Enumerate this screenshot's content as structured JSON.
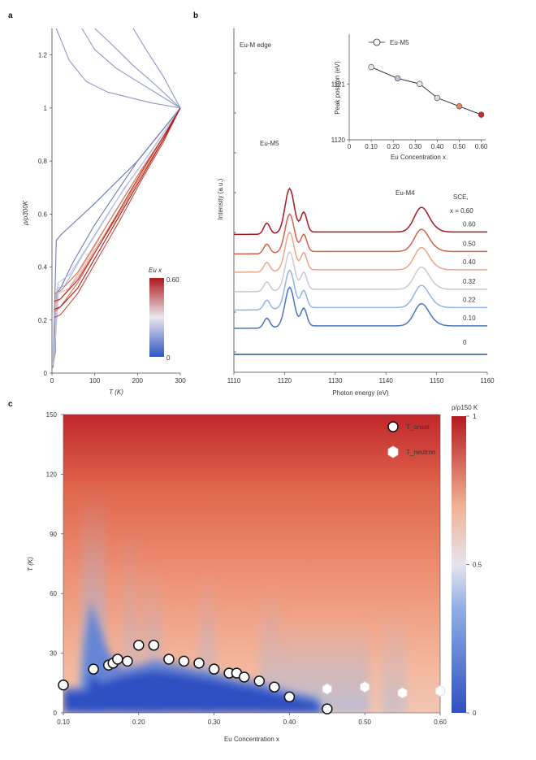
{
  "panels": {
    "a": "a",
    "b": "b",
    "c": "c"
  },
  "colors": {
    "low": "#2f56c2",
    "mid": "#eae7ee",
    "high": "#b0181f",
    "axis": "#444444",
    "gray": "#9aa4c4"
  },
  "chart_data": [
    {
      "id": "a",
      "type": "line",
      "xlabel": "T (K)",
      "ylabel": "ρ/ρ300K",
      "xlim": [
        0,
        300
      ],
      "ylim": [
        0,
        1.3
      ],
      "xticks": [
        "0",
        "100",
        "200",
        "300"
      ],
      "yticks": [
        "0",
        "0.2",
        "0.4",
        "0.6",
        "0.8",
        "1",
        "1.2"
      ],
      "colorbar": {
        "title": "Eu x",
        "max_label": "0.60",
        "min_label": "0"
      },
      "series": [
        {
          "x": 0.0,
          "color": "#8e98c8",
          "points": [
            [
              10,
              1.3
            ],
            [
              40,
              1.18
            ],
            [
              80,
              1.1
            ],
            [
              130,
              1.06
            ],
            [
              180,
              1.04
            ],
            [
              230,
              1.02
            ],
            [
              300,
              1.0
            ]
          ]
        },
        {
          "x": 0.05,
          "color": "#8e98c8",
          "points": [
            [
              70,
              1.3
            ],
            [
              100,
              1.22
            ],
            [
              150,
              1.15
            ],
            [
              200,
              1.1
            ],
            [
              250,
              1.05
            ],
            [
              300,
              1.0
            ]
          ]
        },
        {
          "x": 0.08,
          "color": "#8e98c8",
          "points": [
            [
              100,
              1.3
            ],
            [
              140,
              1.24
            ],
            [
              190,
              1.16
            ],
            [
              240,
              1.09
            ],
            [
              300,
              1.0
            ]
          ]
        },
        {
          "x": 0.12,
          "color": "#8e98c8",
          "points": [
            [
              190,
              1.3
            ],
            [
              220,
              1.22
            ],
            [
              260,
              1.12
            ],
            [
              300,
              1.0
            ]
          ]
        },
        {
          "x": 0.1,
          "color": "#6f78b8",
          "points": [
            [
              2,
              0.02
            ],
            [
              8,
              0.08
            ],
            [
              10,
              0.3
            ],
            [
              20,
              0.32
            ],
            [
              50,
              0.42
            ],
            [
              100,
              0.56
            ],
            [
              150,
              0.68
            ],
            [
              200,
              0.8
            ],
            [
              250,
              0.9
            ],
            [
              300,
              1.0
            ]
          ]
        },
        {
          "x": 0.14,
          "color": "#6f78b8",
          "points": [
            [
              3,
              0.04
            ],
            [
              10,
              0.5
            ],
            [
              20,
              0.52
            ],
            [
              60,
              0.58
            ],
            [
              100,
              0.64
            ],
            [
              150,
              0.72
            ],
            [
              200,
              0.8
            ],
            [
              250,
              0.9
            ],
            [
              300,
              1.0
            ]
          ]
        },
        {
          "x": 0.16,
          "color": "#9cb3e0",
          "points": [
            [
              3,
              0.03
            ],
            [
              12,
              0.32
            ],
            [
              30,
              0.33
            ],
            [
              70,
              0.44
            ],
            [
              120,
              0.57
            ],
            [
              170,
              0.7
            ],
            [
              220,
              0.81
            ],
            [
              300,
              1.0
            ]
          ]
        },
        {
          "x": 0.18,
          "color": "#b9c6e6",
          "points": [
            [
              4,
              0.03
            ],
            [
              14,
              0.34
            ],
            [
              40,
              0.37
            ],
            [
              80,
              0.47
            ],
            [
              130,
              0.6
            ],
            [
              180,
              0.72
            ],
            [
              230,
              0.83
            ],
            [
              300,
              1.0
            ]
          ]
        },
        {
          "x": 0.2,
          "color": "#d9b4b4",
          "points": [
            [
              5,
              0.05
            ],
            [
              15,
              0.3
            ],
            [
              40,
              0.32
            ],
            [
              90,
              0.45
            ],
            [
              140,
              0.59
            ],
            [
              190,
              0.72
            ],
            [
              240,
              0.84
            ],
            [
              300,
              1.0
            ]
          ]
        },
        {
          "x": 0.24,
          "color": "#e69c86",
          "points": [
            [
              5,
              0.26
            ],
            [
              20,
              0.28
            ],
            [
              60,
              0.36
            ],
            [
              110,
              0.49
            ],
            [
              160,
              0.62
            ],
            [
              210,
              0.76
            ],
            [
              260,
              0.89
            ],
            [
              300,
              1.0
            ]
          ]
        },
        {
          "x": 0.28,
          "color": "#d9734f",
          "points": [
            [
              5,
              0.23
            ],
            [
              20,
              0.25
            ],
            [
              60,
              0.34
            ],
            [
              110,
              0.48
            ],
            [
              160,
              0.61
            ],
            [
              210,
              0.75
            ],
            [
              260,
              0.88
            ],
            [
              300,
              1.0
            ]
          ]
        },
        {
          "x": 0.32,
          "color": "#d9734f",
          "points": [
            [
              5,
              0.3
            ],
            [
              20,
              0.31
            ],
            [
              60,
              0.38
            ],
            [
              110,
              0.51
            ],
            [
              160,
              0.64
            ],
            [
              210,
              0.77
            ],
            [
              260,
              0.89
            ],
            [
              300,
              1.0
            ]
          ]
        },
        {
          "x": 0.4,
          "color": "#c44a38",
          "points": [
            [
              5,
              0.21
            ],
            [
              20,
              0.22
            ],
            [
              60,
              0.3
            ],
            [
              110,
              0.44
            ],
            [
              160,
              0.58
            ],
            [
              210,
              0.73
            ],
            [
              260,
              0.87
            ],
            [
              300,
              1.0
            ]
          ]
        },
        {
          "x": 0.5,
          "color": "#b52a25",
          "points": [
            [
              5,
              0.27
            ],
            [
              20,
              0.28
            ],
            [
              60,
              0.35
            ],
            [
              110,
              0.48
            ],
            [
              160,
              0.62
            ],
            [
              210,
              0.76
            ],
            [
              260,
              0.89
            ],
            [
              300,
              1.0
            ]
          ]
        },
        {
          "x": 0.6,
          "color": "#a8141c",
          "points": [
            [
              5,
              0.24
            ],
            [
              20,
              0.25
            ],
            [
              60,
              0.32
            ],
            [
              110,
              0.46
            ],
            [
              160,
              0.6
            ],
            [
              210,
              0.74
            ],
            [
              260,
              0.88
            ],
            [
              300,
              1.0
            ]
          ]
        }
      ]
    },
    {
      "id": "b",
      "type": "line",
      "xlabel": "Photon energy (eV)",
      "ylabel": "Intensity (a.u.)",
      "xlim": [
        1110,
        1160
      ],
      "xticks": [
        "1110",
        "1120",
        "1130",
        "1140",
        "1150",
        "1160"
      ],
      "annotations": {
        "edge": "Eu-M edge",
        "m5": "Eu-M5",
        "m4": "Eu-M4",
        "sample": "SCE,",
        "xeq": "x = 0.60"
      },
      "spectra": [
        {
          "label": "0",
          "color": "#2c4f9e",
          "offset": 0.0,
          "m5": 0.0,
          "m4": 0.0
        },
        {
          "label": "0.10",
          "color": "#4a74c2",
          "offset": 1.0,
          "m5": 1.6,
          "m4": 0.9
        },
        {
          "label": "0.22",
          "color": "#92b4e4",
          "offset": 1.75,
          "m5": 1.55,
          "m4": 0.9
        },
        {
          "label": "0.32",
          "color": "#c9c8d4",
          "offset": 2.5,
          "m5": 1.55,
          "m4": 0.9
        },
        {
          "label": "0.40",
          "color": "#f0a486",
          "offset": 3.3,
          "m5": 1.55,
          "m4": 0.9
        },
        {
          "label": "0.50",
          "color": "#d6604a",
          "offset": 4.05,
          "m5": 1.55,
          "m4": 0.9
        },
        {
          "label": "0.60",
          "color": "#a8161e",
          "offset": 4.85,
          "m5": 1.8,
          "m4": 1.0
        }
      ],
      "inset": {
        "xlabel": "Eu Concentration x",
        "ylabel": "Peak position (eV)",
        "legend": "Eu-M5",
        "xticks": [
          "0",
          "0.10",
          "0.20",
          "0.30",
          "0.40",
          "0.50",
          "0.60"
        ],
        "yticks": [
          "1120",
          "1121"
        ],
        "points": [
          {
            "x": 0.1,
            "y": 1121.3,
            "color": "#e7e7ee"
          },
          {
            "x": 0.22,
            "y": 1121.1,
            "color": "#b8c6e4"
          },
          {
            "x": 0.32,
            "y": 1121.0,
            "color": "#e8e8ea"
          },
          {
            "x": 0.4,
            "y": 1120.75,
            "color": "#d8dbe8"
          },
          {
            "x": 0.5,
            "y": 1120.6,
            "color": "#e2886a"
          },
          {
            "x": 0.6,
            "y": 1120.45,
            "color": "#c62b30"
          }
        ]
      }
    },
    {
      "id": "c",
      "type": "heatmap",
      "xlabel": "Eu Concentration x",
      "ylabel": "T (K)",
      "xlim": [
        0.1,
        0.6
      ],
      "ylim": [
        0,
        150
      ],
      "xticks": [
        "0.10",
        "0.20",
        "0.30",
        "0.40",
        "0.50",
        "0.60"
      ],
      "yticks": [
        "0",
        "30",
        "60",
        "90",
        "120",
        "150"
      ],
      "colorbar": {
        "title": "ρ/ρ150 K",
        "ticks": [
          "0",
          "0.5",
          "1"
        ]
      },
      "legend": [
        "T_onset",
        "T_neutron"
      ],
      "tc_onset": [
        {
          "x": 0.1,
          "y": 14
        },
        {
          "x": 0.14,
          "y": 22
        },
        {
          "x": 0.16,
          "y": 24
        },
        {
          "x": 0.166,
          "y": 25
        },
        {
          "x": 0.172,
          "y": 27
        },
        {
          "x": 0.185,
          "y": 26
        },
        {
          "x": 0.2,
          "y": 34
        },
        {
          "x": 0.22,
          "y": 34
        },
        {
          "x": 0.24,
          "y": 27
        },
        {
          "x": 0.26,
          "y": 26
        },
        {
          "x": 0.28,
          "y": 25
        },
        {
          "x": 0.3,
          "y": 22
        },
        {
          "x": 0.32,
          "y": 20
        },
        {
          "x": 0.33,
          "y": 20
        },
        {
          "x": 0.34,
          "y": 18
        },
        {
          "x": 0.36,
          "y": 16
        },
        {
          "x": 0.38,
          "y": 13
        },
        {
          "x": 0.4,
          "y": 8
        },
        {
          "x": 0.45,
          "y": 2
        }
      ],
      "t_neutron": [
        {
          "x": 0.45,
          "y": 12
        },
        {
          "x": 0.5,
          "y": 13
        },
        {
          "x": 0.55,
          "y": 10
        },
        {
          "x": 0.6,
          "y": 11
        }
      ]
    }
  ]
}
